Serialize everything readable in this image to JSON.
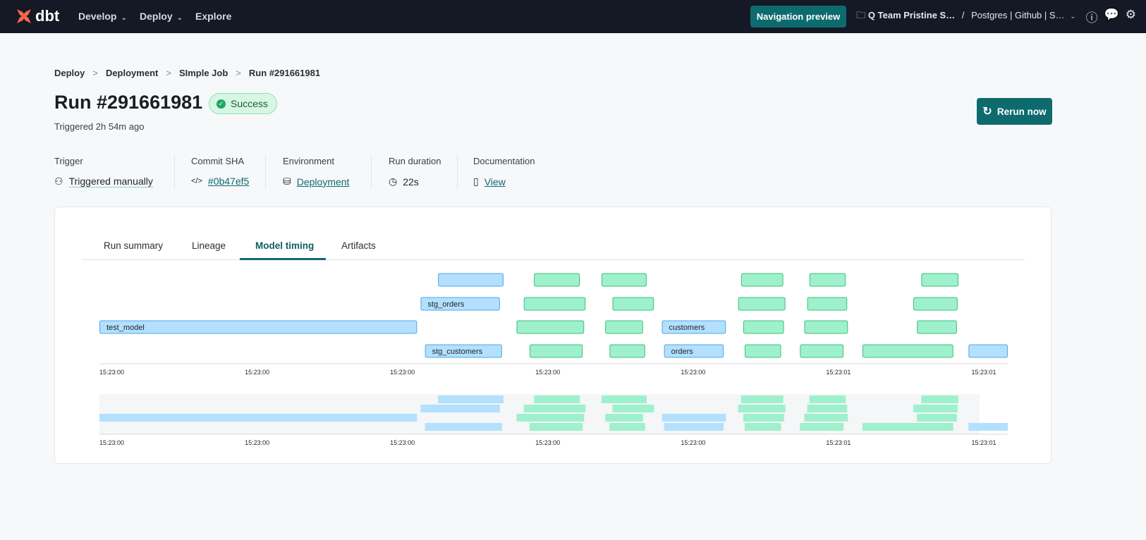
{
  "topbar": {
    "brand": "dbt",
    "nav": [
      {
        "label": "Develop",
        "dropdown": true
      },
      {
        "label": "Deploy",
        "dropdown": true
      },
      {
        "label": "Explore",
        "dropdown": false
      }
    ],
    "nav_preview": "Navigation preview",
    "account": "Q Team Pristine S…",
    "project": "Postgres | Github | S…",
    "icons": [
      "help-icon",
      "feedback-icon",
      "settings-icon"
    ]
  },
  "breadcrumb": [
    "Deploy",
    "Deployment",
    "SImple Job",
    "Run #291661981"
  ],
  "run": {
    "title": "Run #291661981",
    "status": "Success",
    "triggered": "Triggered 2h 54m ago",
    "rerun_label": "Rerun now"
  },
  "meta": [
    {
      "label": "Trigger",
      "value": "Triggered manually",
      "icon": "user-icon",
      "link": false
    },
    {
      "label": "Commit SHA",
      "value": "#0b47ef5",
      "icon": "code-icon",
      "link": true
    },
    {
      "label": "Environment",
      "value": "Deployment",
      "icon": "database-icon",
      "link": true
    },
    {
      "label": "Run duration",
      "value": "22s",
      "icon": "clock-icon",
      "link": false
    },
    {
      "label": "Documentation",
      "value": "View",
      "icon": "book-icon",
      "link": true
    }
  ],
  "tabs": [
    {
      "label": "Run summary"
    },
    {
      "label": "Lineage"
    },
    {
      "label": "Model timing",
      "active": true
    },
    {
      "label": "Artifacts"
    }
  ],
  "colors": {
    "accent": "#0d6b6e",
    "model_fill": "#b3e0fd",
    "model_stroke": "#4aa8ec",
    "test_fill": "#9ff0cc",
    "test_stroke": "#3cc07c",
    "success": "#1fa866"
  },
  "chart_data": {
    "type": "gantt",
    "x_domain": [
      "15:23:00.000",
      "15:23:01.250"
    ],
    "tick_values": [
      "15:23:00.000",
      "15:23:00.200",
      "15:23:00.400",
      "15:23:00.600",
      "15:23:00.800",
      "15:23:01.000",
      "15:23:01.200"
    ],
    "tick_labels": [
      "15:23:00",
      "15:23:00",
      "15:23:00",
      "15:23:00",
      "15:23:00",
      "15:23:01",
      "15:23:01"
    ],
    "bars": [
      {
        "lane": 0,
        "type": "model",
        "label": "",
        "start": "15:23:00.466",
        "end": "15:23:00.556"
      },
      {
        "lane": 0,
        "type": "test",
        "label": "",
        "start": "15:23:00.598",
        "end": "15:23:00.661"
      },
      {
        "lane": 0,
        "type": "test",
        "label": "",
        "start": "15:23:00.691",
        "end": "15:23:00.753"
      },
      {
        "lane": 0,
        "type": "test",
        "label": "",
        "start": "15:23:00.883",
        "end": "15:23:00.941"
      },
      {
        "lane": 0,
        "type": "test",
        "label": "",
        "start": "15:23:00.977",
        "end": "15:23:01.027"
      },
      {
        "lane": 0,
        "type": "test",
        "label": "",
        "start": "15:23:01.131",
        "end": "15:23:01.182"
      },
      {
        "lane": 1,
        "type": "model",
        "label": "stg_orders",
        "start": "15:23:00.442",
        "end": "15:23:00.551"
      },
      {
        "lane": 1,
        "type": "test",
        "label": "",
        "start": "15:23:00.584",
        "end": "15:23:00.669"
      },
      {
        "lane": 1,
        "type": "test",
        "label": "",
        "start": "15:23:00.706",
        "end": "15:23:00.763"
      },
      {
        "lane": 1,
        "type": "test",
        "label": "",
        "start": "15:23:00.879",
        "end": "15:23:00.944"
      },
      {
        "lane": 1,
        "type": "test",
        "label": "",
        "start": "15:23:00.974",
        "end": "15:23:01.029"
      },
      {
        "lane": 1,
        "type": "test",
        "label": "",
        "start": "15:23:01.120",
        "end": "15:23:01.181"
      },
      {
        "lane": 2,
        "type": "model",
        "label": "test_model",
        "start": "15:23:00.000",
        "end": "15:23:00.437"
      },
      {
        "lane": 2,
        "type": "test",
        "label": "",
        "start": "15:23:00.574",
        "end": "15:23:00.667"
      },
      {
        "lane": 2,
        "type": "test",
        "label": "",
        "start": "15:23:00.696",
        "end": "15:23:00.748"
      },
      {
        "lane": 2,
        "type": "model",
        "label": "customers",
        "start": "15:23:00.774",
        "end": "15:23:00.862"
      },
      {
        "lane": 2,
        "type": "test",
        "label": "",
        "start": "15:23:00.886",
        "end": "15:23:00.942"
      },
      {
        "lane": 2,
        "type": "test",
        "label": "",
        "start": "15:23:00.970",
        "end": "15:23:01.030"
      },
      {
        "lane": 2,
        "type": "test",
        "label": "",
        "start": "15:23:01.125",
        "end": "15:23:01.180"
      },
      {
        "lane": 3,
        "type": "model",
        "label": "stg_customers",
        "start": "15:23:00.448",
        "end": "15:23:00.554"
      },
      {
        "lane": 3,
        "type": "test",
        "label": "",
        "start": "15:23:00.592",
        "end": "15:23:00.665"
      },
      {
        "lane": 3,
        "type": "test",
        "label": "",
        "start": "15:23:00.702",
        "end": "15:23:00.751"
      },
      {
        "lane": 3,
        "type": "model",
        "label": "orders",
        "start": "15:23:00.777",
        "end": "15:23:00.859"
      },
      {
        "lane": 3,
        "type": "test",
        "label": "",
        "start": "15:23:00.888",
        "end": "15:23:00.938"
      },
      {
        "lane": 3,
        "type": "test",
        "label": "",
        "start": "15:23:00.964",
        "end": "15:23:01.024"
      },
      {
        "lane": 3,
        "type": "test",
        "label": "",
        "start": "15:23:01.050",
        "end": "15:23:01.175"
      },
      {
        "lane": 3,
        "type": "model",
        "label": "",
        "start": "15:23:01.196",
        "end": "15:23:01.250"
      }
    ]
  }
}
